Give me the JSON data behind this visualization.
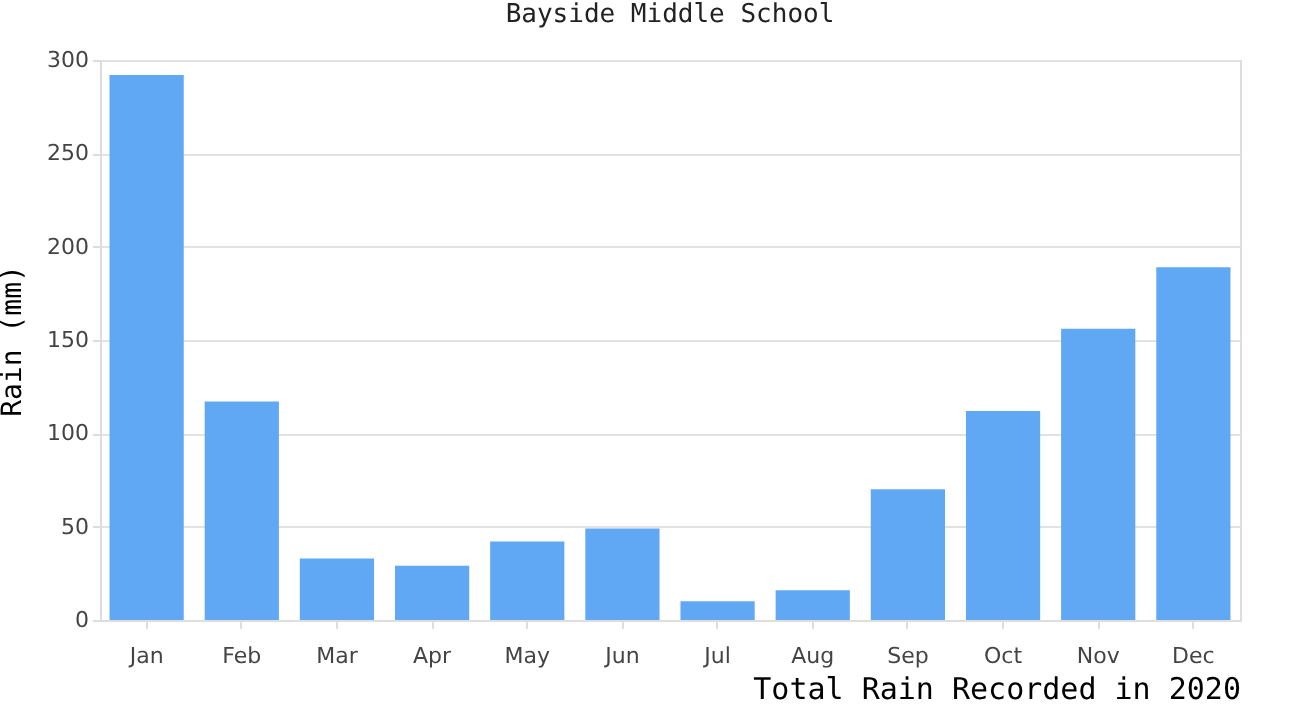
{
  "chart_data": {
    "type": "bar",
    "title": "Bayside Middle School",
    "xlabel": "Total Rain Recorded in 2020",
    "ylabel": "Rain (mm)",
    "categories": [
      "Jan",
      "Feb",
      "Mar",
      "Apr",
      "May",
      "Jun",
      "Jul",
      "Aug",
      "Sep",
      "Oct",
      "Nov",
      "Dec"
    ],
    "values": [
      292,
      117,
      33,
      29,
      42,
      49,
      10,
      16,
      70,
      112,
      156,
      189
    ],
    "color": "#60a8f4",
    "ylim": [
      0,
      300
    ],
    "yticks": [
      0,
      50,
      100,
      150,
      200,
      250,
      300
    ],
    "grid": "y"
  }
}
